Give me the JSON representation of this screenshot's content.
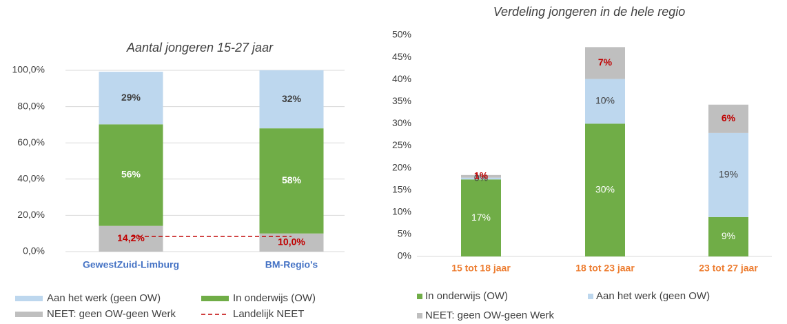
{
  "chart_data": [
    {
      "type": "bar",
      "stacked": true,
      "title": "Aantal jongeren 15-27 jaar",
      "categories": [
        "GewestZuid-Limburg",
        "BM-Regio's"
      ],
      "category_color": "#4472c4",
      "series": [
        {
          "name": "NEET: geen OW-geen Werk",
          "color": "#bfbfbf",
          "label_color": "#c00000",
          "values": [
            14.2,
            10.0
          ],
          "value_labels": [
            "14,2%",
            "10,0%"
          ]
        },
        {
          "name": "In onderwijs (OW)",
          "color": "#70ad47",
          "label_color": "#ffffff",
          "values": [
            56,
            58
          ],
          "value_labels": [
            "56%",
            "58%"
          ]
        },
        {
          "name": "Aan het werk (geen OW)",
          "color": "#bdd7ee",
          "label_color": "#404040",
          "values": [
            29,
            32
          ],
          "value_labels": [
            "29%",
            "32%"
          ]
        },
        {
          "name": "Landelijk NEET",
          "type": "line",
          "dashed": true,
          "color": "#c00000",
          "values": [
            8.4,
            8.4
          ]
        }
      ],
      "ylim": [
        0,
        100
      ],
      "yticks": [
        {
          "value": 0,
          "label": "0,0%"
        },
        {
          "value": 20,
          "label": "20,0%"
        },
        {
          "value": 40,
          "label": "40,0%"
        },
        {
          "value": 60,
          "label": "60,0%"
        },
        {
          "value": 80,
          "label": "80,0%"
        },
        {
          "value": 100,
          "label": "100,0%"
        }
      ],
      "grid": true
    },
    {
      "type": "bar",
      "stacked": true,
      "title": "Verdeling jongeren in de hele regio",
      "categories": [
        "15 tot 18 jaar",
        "18 tot 23 jaar",
        "23 tot 27 jaar"
      ],
      "category_color": "#ed7d31",
      "series": [
        {
          "name": "In onderwijs (OW)",
          "color": "#70ad47",
          "label_color": "#ffffff",
          "values": [
            17.4,
            30,
            8.9
          ],
          "value_labels": [
            "17%",
            "30%",
            "9%"
          ]
        },
        {
          "name": "Aan het werk (geen OW)",
          "color": "#bdd7ee",
          "label_color": "#404040",
          "values": [
            0.4,
            10.1,
            19
          ],
          "value_labels": [
            "0%",
            "10%",
            "19%"
          ]
        },
        {
          "name": "NEET: geen OW-geen Werk",
          "color": "#bfbfbf",
          "label_color": "#c00000",
          "values": [
            0.6,
            7.2,
            6.4
          ],
          "value_labels": [
            "1%",
            "7%",
            "6%"
          ]
        }
      ],
      "ylim": [
        0,
        50
      ],
      "yticks": [
        {
          "value": 0,
          "label": "0%"
        },
        {
          "value": 5,
          "label": "5%"
        },
        {
          "value": 10,
          "label": "10%"
        },
        {
          "value": 15,
          "label": "15%"
        },
        {
          "value": 20,
          "label": "20%"
        },
        {
          "value": 25,
          "label": "25%"
        },
        {
          "value": 30,
          "label": "30%"
        },
        {
          "value": 35,
          "label": "35%"
        },
        {
          "value": 40,
          "label": "40%"
        },
        {
          "value": 45,
          "label": "45%"
        },
        {
          "value": 50,
          "label": "50%"
        }
      ],
      "grid": false
    }
  ]
}
